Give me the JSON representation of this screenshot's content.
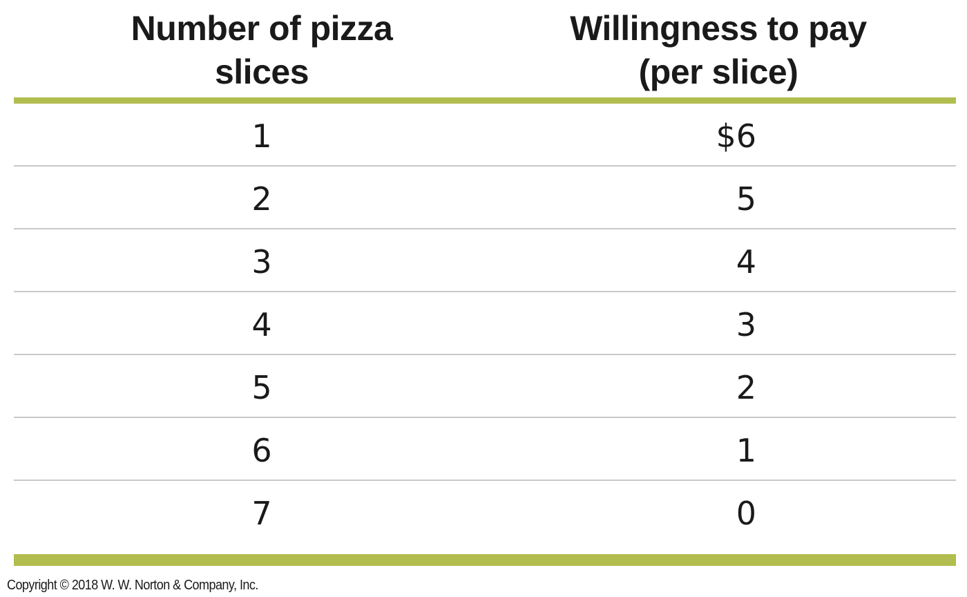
{
  "table": {
    "headers": [
      [
        "Number of pizza",
        "slices"
      ],
      [
        "Willingness to pay",
        "(per slice)"
      ]
    ],
    "rows": [
      [
        "1",
        "$6"
      ],
      [
        "2",
        "5"
      ],
      [
        "3",
        "4"
      ],
      [
        "4",
        "3"
      ],
      [
        "5",
        "2"
      ],
      [
        "6",
        "1"
      ],
      [
        "7",
        "0"
      ]
    ]
  },
  "colors": {
    "rule": "#b2bd4f",
    "row_divider": "#c8c8c8"
  },
  "footer": {
    "copyright": "Copyright © 2018 W. W. Norton & Company, Inc."
  }
}
